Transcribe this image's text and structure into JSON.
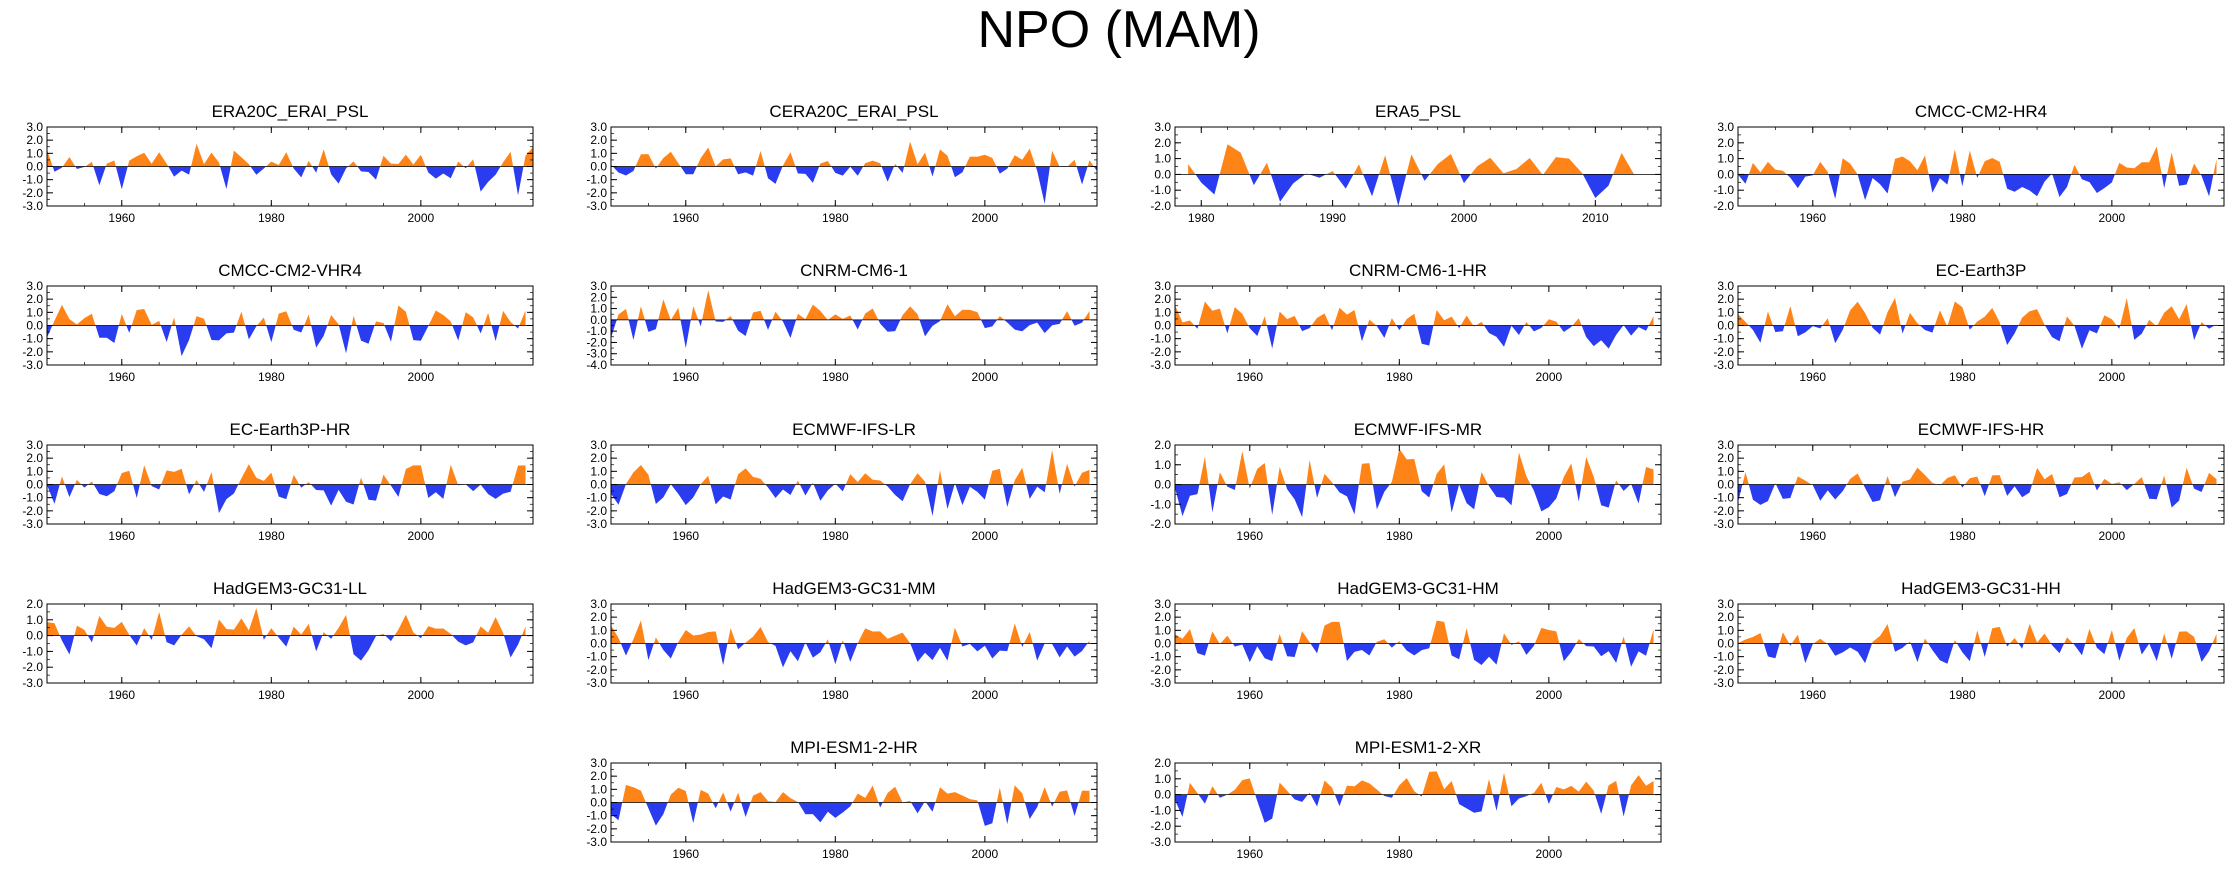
{
  "title": "NPO (MAM)",
  "colors": {
    "positive": "#ff8418",
    "negative": "#2a3cf0",
    "frame": "#000000"
  },
  "chart_data": [
    {
      "type": "area",
      "title": "ERA20C_ERAI_PSL",
      "xlim": [
        1950,
        2015
      ],
      "ylim": [
        -3,
        3
      ],
      "yticks": [
        "3.0",
        "2.0",
        "1.0",
        "0.0",
        "-1.0",
        "-2.0",
        "-3.0"
      ],
      "xticks": [
        1960,
        1980,
        2000
      ],
      "seed": 11,
      "x_start": 1950,
      "x_end": 2015
    },
    {
      "type": "area",
      "title": "CERA20C_ERAI_PSL",
      "xlim": [
        1950,
        2015
      ],
      "ylim": [
        -3,
        3
      ],
      "yticks": [
        "3.0",
        "2.0",
        "1.0",
        "0.0",
        "-1.0",
        "-2.0",
        "-3.0"
      ],
      "xticks": [
        1960,
        1980,
        2000
      ],
      "seed": 12,
      "x_start": 1950,
      "x_end": 2015
    },
    {
      "type": "area",
      "title": "ERA5_PSL",
      "xlim": [
        1978,
        2015
      ],
      "ylim": [
        -2,
        3
      ],
      "yticks": [
        "3.0",
        "2.0",
        "1.0",
        "0.0",
        "-1.0",
        "-2.0"
      ],
      "xticks": [
        1980,
        1990,
        2000,
        2010
      ],
      "seed": 13,
      "x_start": 1979,
      "x_end": 2013
    },
    {
      "type": "area",
      "title": "CMCC-CM2-HR4",
      "xlim": [
        1950,
        2015
      ],
      "ylim": [
        -2,
        3
      ],
      "yticks": [
        "3.0",
        "2.0",
        "1.0",
        "0.0",
        "-1.0",
        "-2.0"
      ],
      "xticks": [
        1960,
        1980,
        2000
      ],
      "seed": 14,
      "x_start": 1950,
      "x_end": 2014
    },
    {
      "type": "area",
      "title": "CMCC-CM2-VHR4",
      "xlim": [
        1950,
        2015
      ],
      "ylim": [
        -3,
        3
      ],
      "yticks": [
        "3.0",
        "2.0",
        "1.0",
        "0.0",
        "-1.0",
        "-2.0",
        "-3.0"
      ],
      "xticks": [
        1960,
        1980,
        2000
      ],
      "seed": 21,
      "x_start": 1950,
      "x_end": 2014
    },
    {
      "type": "area",
      "title": "CNRM-CM6-1",
      "xlim": [
        1950,
        2015
      ],
      "ylim": [
        -4,
        3
      ],
      "yticks": [
        "3.0",
        "2.0",
        "1.0",
        "0.0",
        "-1.0",
        "-2.0",
        "-3.0",
        "-4.0"
      ],
      "xticks": [
        1960,
        1980,
        2000
      ],
      "seed": 22,
      "x_start": 1950,
      "x_end": 2014
    },
    {
      "type": "area",
      "title": "CNRM-CM6-1-HR",
      "xlim": [
        1950,
        2015
      ],
      "ylim": [
        -3,
        3
      ],
      "yticks": [
        "3.0",
        "2.0",
        "1.0",
        "0.0",
        "-1.0",
        "-2.0",
        "-3.0"
      ],
      "xticks": [
        1960,
        1980,
        2000
      ],
      "seed": 23,
      "x_start": 1950,
      "x_end": 2014
    },
    {
      "type": "area",
      "title": "EC-Earth3P",
      "xlim": [
        1950,
        2015
      ],
      "ylim": [
        -3,
        3
      ],
      "yticks": [
        "3.0",
        "2.0",
        "1.0",
        "0.0",
        "-1.0",
        "-2.0",
        "-3.0"
      ],
      "xticks": [
        1960,
        1980,
        2000
      ],
      "seed": 24,
      "x_start": 1950,
      "x_end": 2014
    },
    {
      "type": "area",
      "title": "EC-Earth3P-HR",
      "xlim": [
        1950,
        2015
      ],
      "ylim": [
        -3,
        3
      ],
      "yticks": [
        "3.0",
        "2.0",
        "1.0",
        "0.0",
        "-1.0",
        "-2.0",
        "-3.0"
      ],
      "xticks": [
        1960,
        1980,
        2000
      ],
      "seed": 31,
      "x_start": 1950,
      "x_end": 2014
    },
    {
      "type": "area",
      "title": "ECMWF-IFS-LR",
      "xlim": [
        1950,
        2015
      ],
      "ylim": [
        -3,
        3
      ],
      "yticks": [
        "3.0",
        "2.0",
        "1.0",
        "0.0",
        "-1.0",
        "-2.0",
        "-3.0"
      ],
      "xticks": [
        1960,
        1980,
        2000
      ],
      "seed": 32,
      "x_start": 1950,
      "x_end": 2014
    },
    {
      "type": "area",
      "title": "ECMWF-IFS-MR",
      "xlim": [
        1950,
        2015
      ],
      "ylim": [
        -2,
        2
      ],
      "yticks": [
        "2.0",
        "1.0",
        "0.0",
        "-1.0",
        "-2.0"
      ],
      "xticks": [
        1960,
        1980,
        2000
      ],
      "seed": 33,
      "x_start": 1950,
      "x_end": 2014
    },
    {
      "type": "area",
      "title": "ECMWF-IFS-HR",
      "xlim": [
        1950,
        2015
      ],
      "ylim": [
        -3,
        3
      ],
      "yticks": [
        "3.0",
        "2.0",
        "1.0",
        "0.0",
        "-1.0",
        "-2.0",
        "-3.0"
      ],
      "xticks": [
        1960,
        1980,
        2000
      ],
      "seed": 34,
      "x_start": 1950,
      "x_end": 2014
    },
    {
      "type": "area",
      "title": "HadGEM3-GC31-LL",
      "xlim": [
        1950,
        2015
      ],
      "ylim": [
        -3,
        2
      ],
      "yticks": [
        "2.0",
        "1.0",
        "0.0",
        "-1.0",
        "-2.0",
        "-3.0"
      ],
      "xticks": [
        1960,
        1980,
        2000
      ],
      "seed": 41,
      "x_start": 1950,
      "x_end": 2014
    },
    {
      "type": "area",
      "title": "HadGEM3-GC31-MM",
      "xlim": [
        1950,
        2015
      ],
      "ylim": [
        -3,
        3
      ],
      "yticks": [
        "3.0",
        "2.0",
        "1.0",
        "0.0",
        "-1.0",
        "-2.0",
        "-3.0"
      ],
      "xticks": [
        1960,
        1980,
        2000
      ],
      "seed": 42,
      "x_start": 1950,
      "x_end": 2014
    },
    {
      "type": "area",
      "title": "HadGEM3-GC31-HM",
      "xlim": [
        1950,
        2015
      ],
      "ylim": [
        -3,
        3
      ],
      "yticks": [
        "3.0",
        "2.0",
        "1.0",
        "0.0",
        "-1.0",
        "-2.0",
        "-3.0"
      ],
      "xticks": [
        1960,
        1980,
        2000
      ],
      "seed": 43,
      "x_start": 1950,
      "x_end": 2014
    },
    {
      "type": "area",
      "title": "HadGEM3-GC31-HH",
      "xlim": [
        1950,
        2015
      ],
      "ylim": [
        -3,
        3
      ],
      "yticks": [
        "3.0",
        "2.0",
        "1.0",
        "0.0",
        "-1.0",
        "-2.0",
        "-3.0"
      ],
      "xticks": [
        1960,
        1980,
        2000
      ],
      "seed": 44,
      "x_start": 1950,
      "x_end": 2014
    },
    {
      "type": "area",
      "title": "MPI-ESM1-2-HR",
      "xlim": [
        1950,
        2015
      ],
      "ylim": [
        -3,
        3
      ],
      "yticks": [
        "3.0",
        "2.0",
        "1.0",
        "0.0",
        "-1.0",
        "-2.0",
        "-3.0"
      ],
      "xticks": [
        1960,
        1980,
        2000
      ],
      "seed": 51,
      "x_start": 1950,
      "x_end": 2014
    },
    {
      "type": "area",
      "title": "MPI-ESM1-2-XR",
      "xlim": [
        1950,
        2015
      ],
      "ylim": [
        -3,
        2
      ],
      "yticks": [
        "2.0",
        "1.0",
        "0.0",
        "-1.0",
        "-2.0",
        "-3.0"
      ],
      "xticks": [
        1960,
        1980,
        2000
      ],
      "seed": 52,
      "x_start": 1950,
      "x_end": 2014
    }
  ]
}
